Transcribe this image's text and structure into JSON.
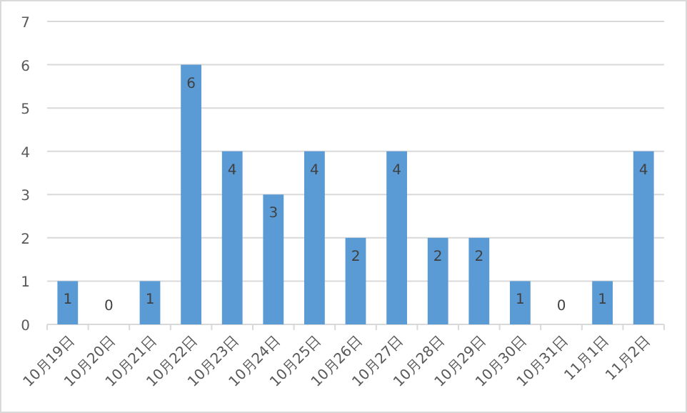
{
  "chart_data": {
    "type": "bar",
    "categories": [
      "10月19日",
      "10月20日",
      "10月21日",
      "10月22日",
      "10月23日",
      "10月24日",
      "10月25日",
      "10月26日",
      "10月27日",
      "10月28日",
      "10月29日",
      "10月30日",
      "10月31日",
      "11月1日",
      "11月2日"
    ],
    "values": [
      1,
      0,
      1,
      6,
      4,
      3,
      4,
      2,
      4,
      2,
      2,
      1,
      0,
      1,
      4
    ],
    "color": "#5b9bd5",
    "ylim": [
      0,
      7
    ],
    "yticks": [
      0,
      1,
      2,
      3,
      4,
      5,
      6,
      7
    ],
    "grid": "y",
    "data_labels": true
  }
}
